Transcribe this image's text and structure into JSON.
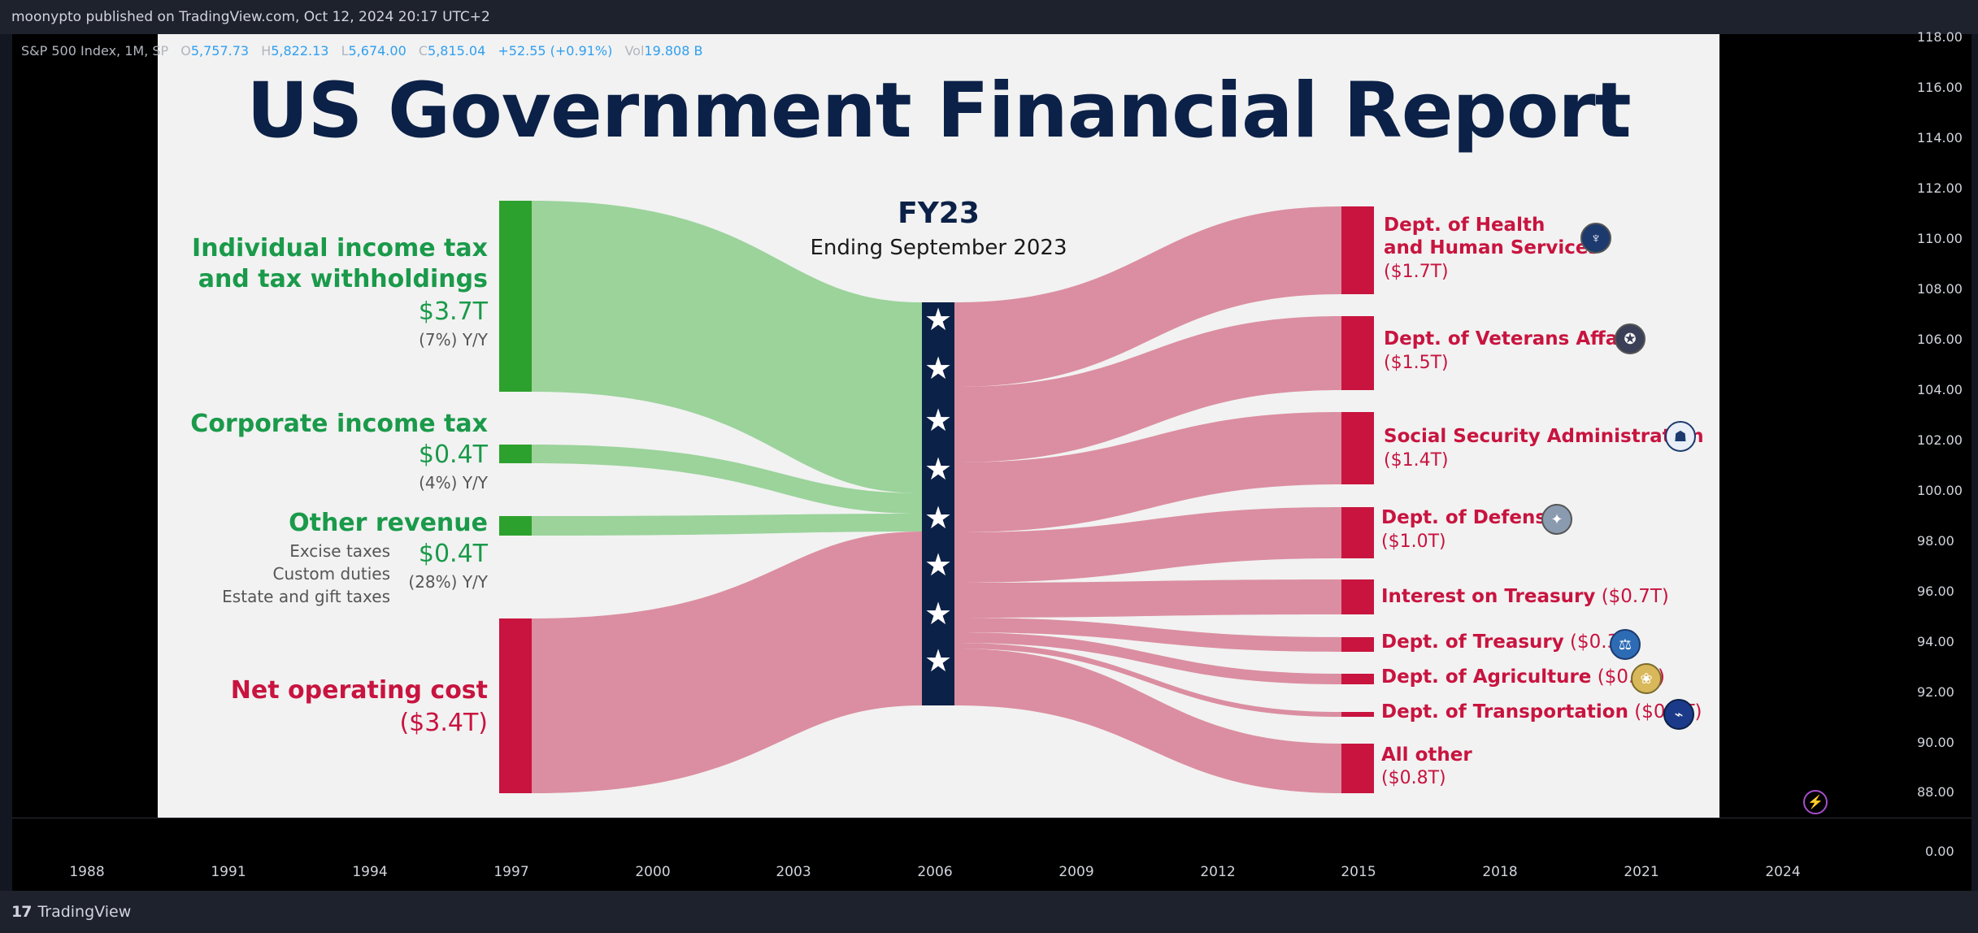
{
  "topbar": {
    "text": "moonypto published on TradingView.com, Oct 12, 2024 20:17 UTC+2"
  },
  "legend": {
    "symbol": "S&P 500 Index, 1M, SP",
    "open_key": "O",
    "open": "5,757.73",
    "high_key": "H",
    "high": "5,822.13",
    "low_key": "L",
    "low": "5,674.00",
    "close_key": "C",
    "close": "5,815.04",
    "change": "+52.55 (+0.91%)",
    "vol_key": "Vol",
    "vol": "19.808 B"
  },
  "y_axis": [
    "118.00",
    "116.00",
    "114.00",
    "112.00",
    "110.00",
    "108.00",
    "106.00",
    "104.00",
    "102.00",
    "100.00",
    "98.00",
    "96.00",
    "94.00",
    "92.00",
    "90.00",
    "88.00",
    "0.00"
  ],
  "x_axis": [
    "1988",
    "1991",
    "1994",
    "1997",
    "2000",
    "2003",
    "2006",
    "2009",
    "2012",
    "2015",
    "2018",
    "2021",
    "2024"
  ],
  "footer": {
    "brand": "TradingView",
    "logo_mark": "17"
  },
  "report": {
    "title": "US Government Financial Report",
    "fy": "FY23",
    "fy_sub": "Ending September 2023",
    "colors": {
      "revenue": "#2da12d",
      "revenue_flow": "#9bd39b",
      "cost": "#c8143f",
      "cost_flow": "#db8ea1",
      "navy": "#0c2147"
    },
    "revenue": [
      {
        "name_line1": "Individual income tax",
        "name_line2": "and tax withholdings",
        "value": "$3.7T",
        "change": "(7%) Y/Y"
      },
      {
        "name_line1": "Corporate income tax",
        "value": "$0.4T",
        "change": "(4%) Y/Y"
      },
      {
        "name_line1": "Other revenue",
        "value": "$0.4T",
        "change": "(28%) Y/Y",
        "details": [
          "Excise taxes",
          "Custom duties",
          "Estate and gift taxes"
        ]
      },
      {
        "name_line1": "Net operating cost",
        "value": "($3.4T)"
      }
    ],
    "spending": [
      {
        "name_line1": "Dept. of Health",
        "name_line2": "and Human Services",
        "value": "($1.7T)",
        "icon": "hhs-seal-icon"
      },
      {
        "name_line1": "Dept. of Veterans Affairs",
        "value": "($1.5T)",
        "icon": "va-seal-icon"
      },
      {
        "name_line1": "Social Security Administration",
        "value": "($1.4T)",
        "icon": "ssa-seal-icon"
      },
      {
        "name_line1": "Dept. of Defense",
        "value": "($1.0T)",
        "icon": "dod-seal-icon"
      },
      {
        "name_line1": "Interest on Treasury",
        "value": "($0.7T)"
      },
      {
        "name_line1": "Dept. of Treasury",
        "value": "($0.3T)",
        "icon": "treasury-seal-icon"
      },
      {
        "name_line1": "Dept. of Agriculture",
        "value": "($0.2T)",
        "icon": "usda-seal-icon"
      },
      {
        "name_line1": "Dept. of Transportation",
        "value": "($0.1T)",
        "icon": "dot-seal-icon"
      },
      {
        "name_line1": "All other",
        "value": "($0.8T)"
      }
    ]
  }
}
